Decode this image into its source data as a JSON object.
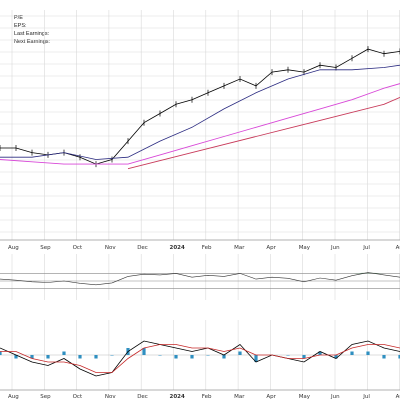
{
  "header": {
    "pe_label": "P/E",
    "eps_label": "EPS:",
    "last_earnings_label": "Last Earnings:",
    "next_earnings_label": "Next Earnings:"
  },
  "colors": {
    "price": "#000000",
    "ma_fast": "#2a2a80",
    "trend_magenta": "#d848d8",
    "trend_red": "#c83a5a",
    "rsi_line": "#333333",
    "rsi_fill": "#3a7d4e",
    "macd_line": "#000000",
    "signal_line": "#c62828",
    "histogram": "#2f8fc0",
    "grid": "#d9d9d9"
  },
  "chart_data": [
    {
      "type": "line",
      "panel": "price",
      "x_axis_labels": [
        "Aug",
        "Sep",
        "Oct",
        "Nov",
        "Dec",
        "2024",
        "Feb",
        "Mar",
        "Apr",
        "May",
        "Jun",
        "Jul",
        "Au"
      ],
      "x_axis_bold": [
        "2024"
      ],
      "ylim": [
        0,
        100
      ],
      "grid": true,
      "series": [
        {
          "role": "price",
          "x": [
            0,
            4,
            8,
            12,
            16,
            20,
            24,
            28,
            32,
            36,
            40,
            44,
            48,
            52,
            56,
            60,
            64,
            68,
            72,
            76,
            80,
            84,
            88,
            92,
            96,
            100
          ],
          "values": [
            40,
            40,
            38,
            37,
            38,
            36,
            33,
            35,
            43,
            51,
            55,
            59,
            61,
            64,
            67,
            70,
            67,
            73,
            74,
            73,
            76,
            75,
            79,
            83,
            81,
            82
          ]
        },
        {
          "role": "ma-fast",
          "x": [
            0,
            8,
            16,
            24,
            32,
            40,
            48,
            56,
            64,
            72,
            80,
            88,
            96,
            100
          ],
          "values": [
            36,
            36,
            38,
            35,
            36,
            43,
            49,
            57,
            64,
            70,
            74,
            74,
            75,
            76
          ]
        },
        {
          "role": "trend-line-magenta",
          "x": [
            0,
            8,
            16,
            24,
            32,
            40,
            48,
            56,
            64,
            72,
            80,
            88,
            96,
            100
          ],
          "values": [
            35,
            34,
            33,
            33,
            33,
            37,
            41,
            45,
            49,
            53,
            57,
            61,
            66,
            68
          ]
        },
        {
          "role": "trend-line-red",
          "x": [
            32,
            48,
            64,
            80,
            96,
            100
          ],
          "values": [
            31,
            38,
            45,
            52,
            59,
            62
          ]
        }
      ]
    },
    {
      "type": "area",
      "panel": "rsi",
      "ylim": [
        0,
        100
      ],
      "levels": [
        70,
        50,
        30
      ],
      "x": [
        0,
        4,
        8,
        12,
        16,
        20,
        24,
        28,
        32,
        36,
        40,
        44,
        48,
        52,
        56,
        60,
        64,
        68,
        72,
        76,
        80,
        84,
        88,
        92,
        96,
        100
      ],
      "values": [
        55,
        52,
        48,
        46,
        50,
        44,
        40,
        45,
        62,
        68,
        66,
        70,
        60,
        65,
        62,
        70,
        55,
        60,
        57,
        48,
        58,
        52,
        64,
        72,
        66,
        60
      ]
    },
    {
      "type": "line",
      "panel": "macd",
      "ylim": [
        -10,
        10
      ],
      "x_axis_labels": [
        "Aug",
        "Sep",
        "Oct",
        "Nov",
        "Dec",
        "2024",
        "Feb",
        "Mar",
        "Apr",
        "May",
        "Jun",
        "Jul",
        "Au"
      ],
      "x_axis_bold": [
        "2024"
      ],
      "series": [
        {
          "role": "macd",
          "x": [
            0,
            4,
            8,
            12,
            16,
            20,
            24,
            28,
            32,
            36,
            40,
            44,
            48,
            52,
            56,
            60,
            64,
            68,
            72,
            76,
            80,
            84,
            88,
            92,
            96,
            100
          ],
          "values": [
            2,
            0,
            -2,
            -3,
            -1,
            -4,
            -6,
            -5,
            1,
            4,
            3,
            2,
            1,
            2,
            0,
            3,
            -2,
            0,
            -1,
            -2,
            1,
            -1,
            3,
            4,
            2,
            1
          ]
        },
        {
          "role": "signal",
          "x": [
            0,
            4,
            8,
            12,
            16,
            20,
            24,
            28,
            32,
            36,
            40,
            44,
            48,
            52,
            56,
            60,
            64,
            68,
            72,
            76,
            80,
            84,
            88,
            92,
            96,
            100
          ],
          "values": [
            1,
            1,
            -1,
            -2,
            -2,
            -3,
            -5,
            -5,
            -1,
            2,
            3,
            3,
            2,
            2,
            1,
            2,
            0,
            0,
            -1,
            -1,
            0,
            0,
            2,
            3,
            3,
            2
          ]
        }
      ],
      "histogram": {
        "x": [
          0,
          4,
          8,
          12,
          16,
          20,
          24,
          28,
          32,
          36,
          40,
          44,
          48,
          52,
          56,
          60,
          64,
          68,
          72,
          76,
          80,
          84,
          88,
          92,
          96,
          100
        ],
        "values": [
          1,
          -1,
          -1,
          -1,
          1,
          -1,
          -1,
          0,
          2,
          2,
          0,
          -1,
          -1,
          0,
          -1,
          1,
          -2,
          0,
          0,
          -1,
          1,
          -1,
          1,
          1,
          -1,
          -1
        ]
      }
    }
  ]
}
